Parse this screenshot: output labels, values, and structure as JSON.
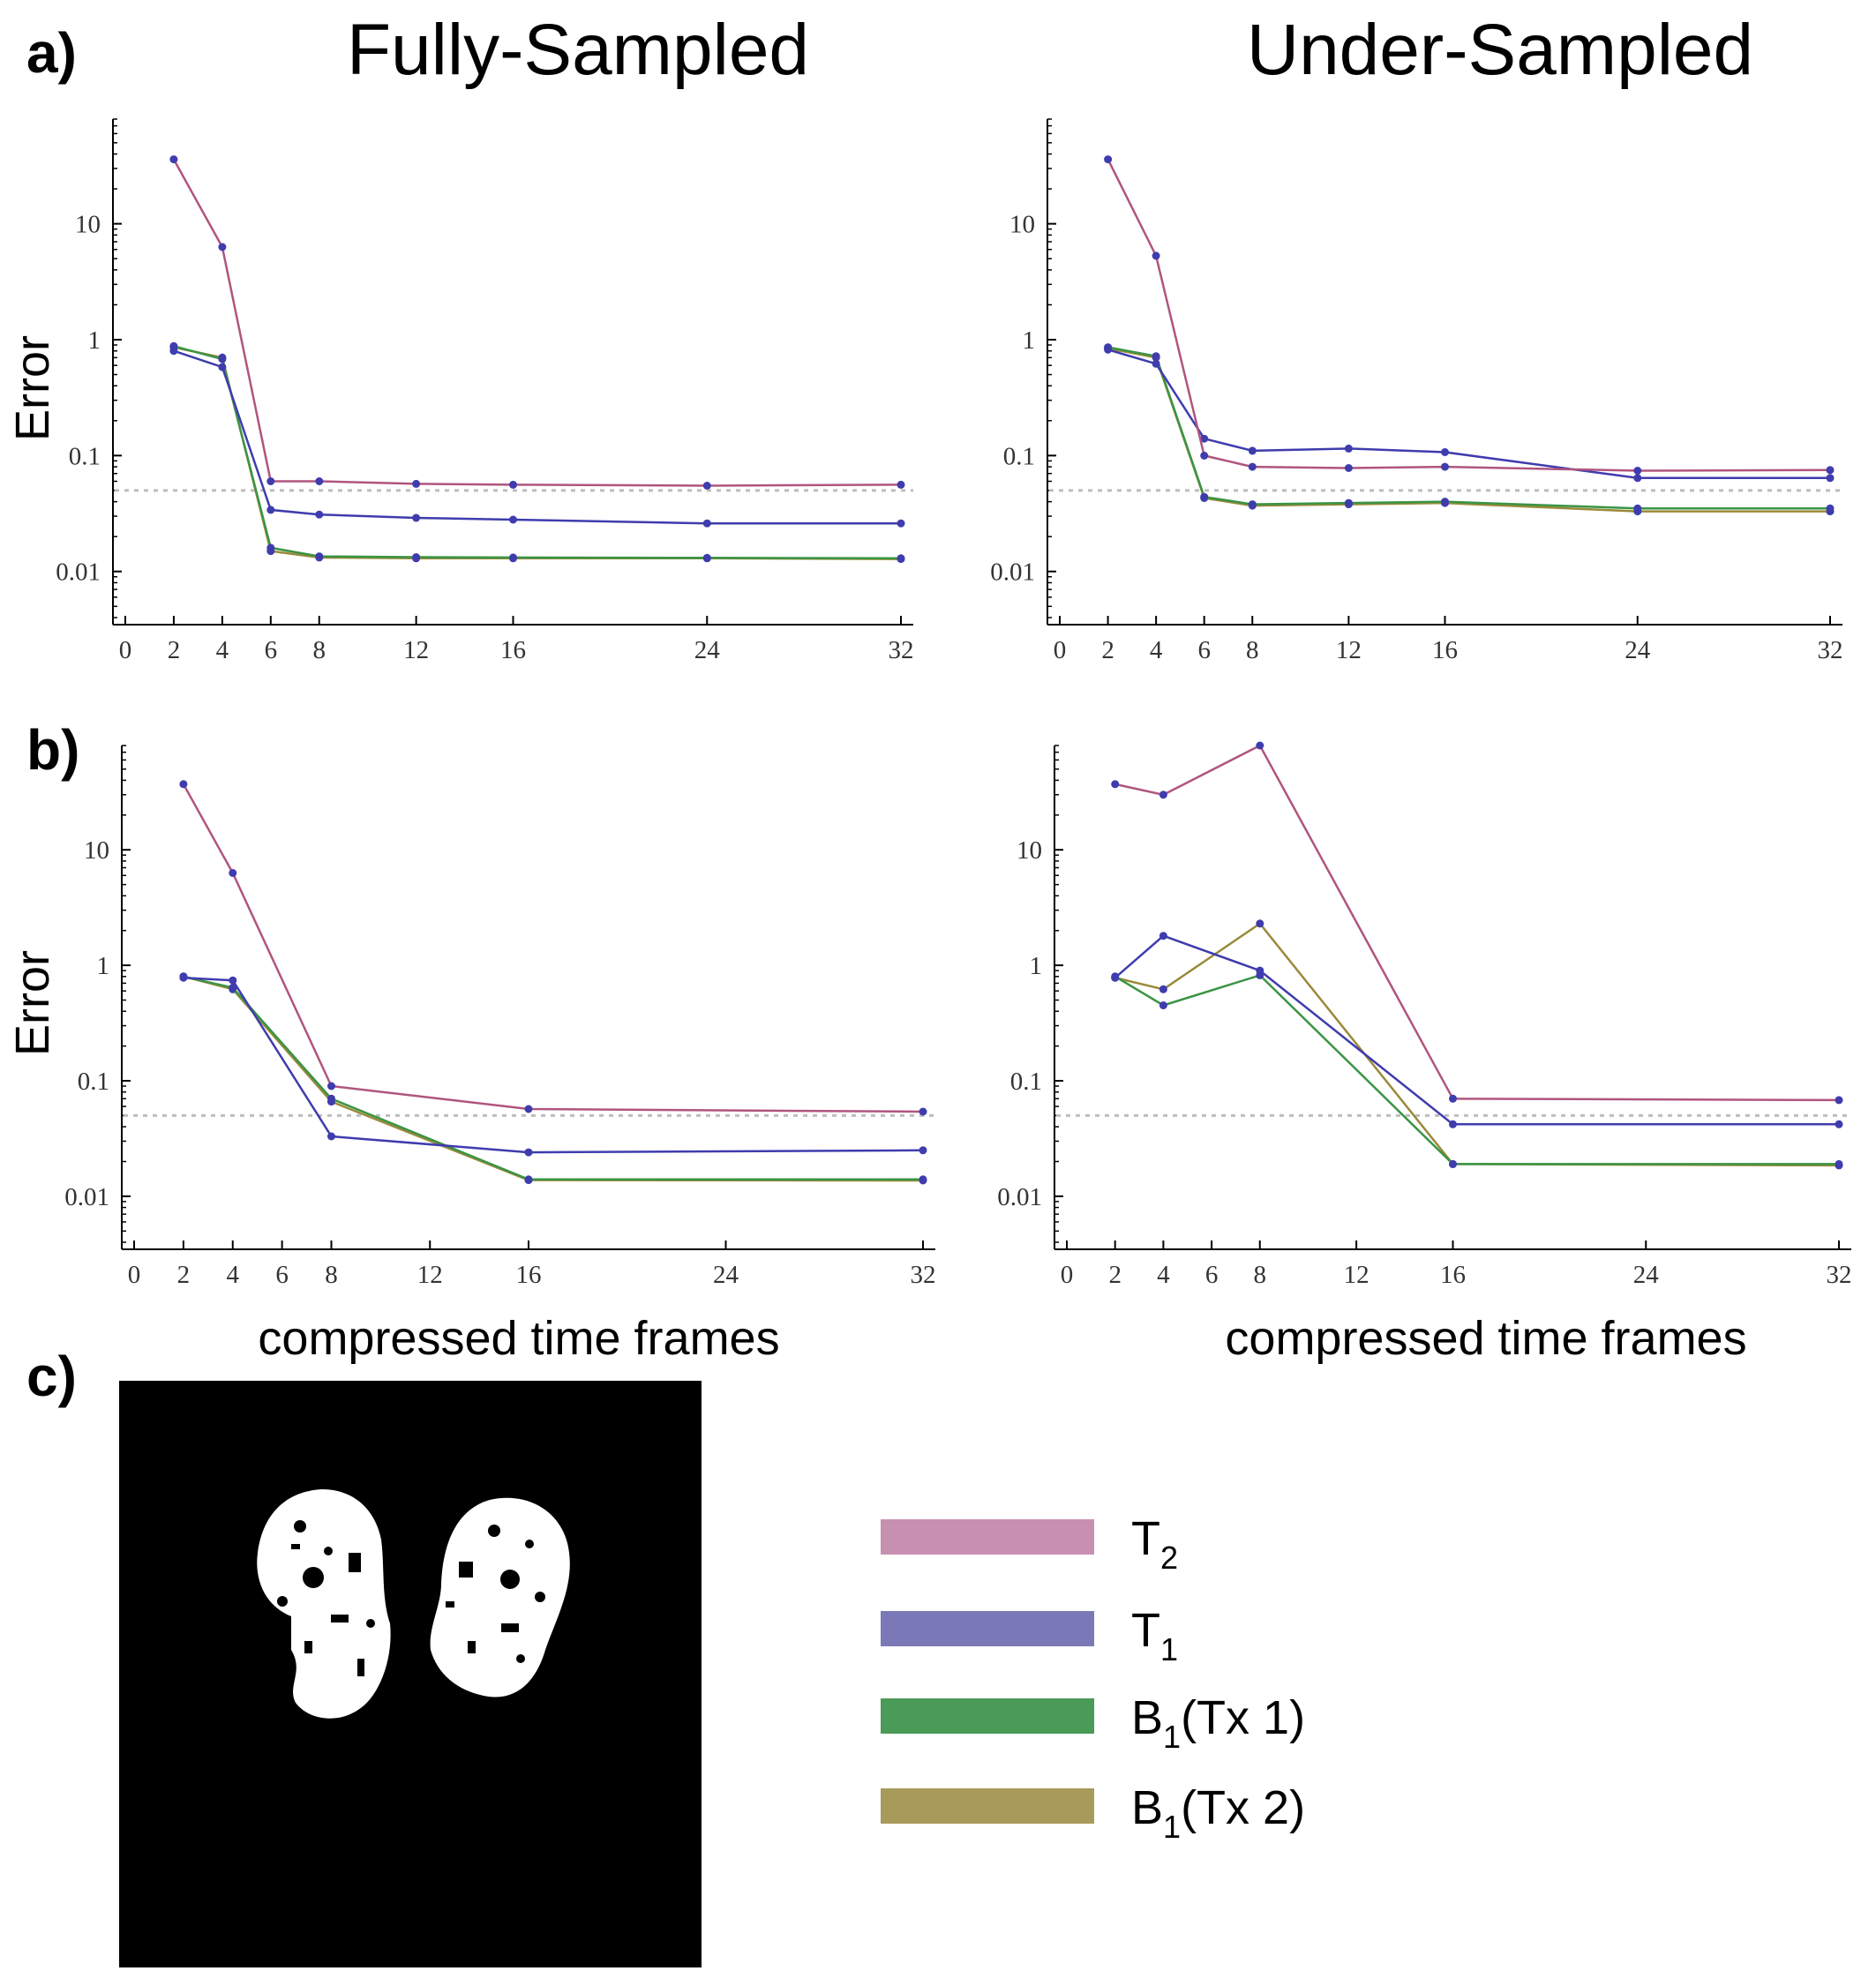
{
  "panels": {
    "a": "a)",
    "b": "b)",
    "c": "c)"
  },
  "columns": {
    "left": "Fully-Sampled",
    "right": "Under-Sampled"
  },
  "ylabel": "Error",
  "xlabel": "compressed time frames",
  "legend": [
    {
      "main": "T",
      "sub": "2",
      "rest": "",
      "color": "#c890b0"
    },
    {
      "main": "T",
      "sub": "1",
      "rest": "",
      "color": "#7b78b8"
    },
    {
      "main": "B",
      "sub": "1",
      "rest": "(Tx 1)",
      "color": "#4a9a58"
    },
    {
      "main": "B",
      "sub": "1",
      "rest": "(Tx 2)",
      "color": "#a89a5a"
    }
  ],
  "series_colors": {
    "T2": "#b0557e",
    "T1": "#3f3cae",
    "B1_tx1": "#3a9444",
    "B1_tx2": "#9a8a3a"
  },
  "chart_data": [
    {
      "id": "a-fully",
      "type": "line",
      "title": "Fully-Sampled",
      "xlabel": "",
      "ylabel": "Error",
      "yscale": "log",
      "ylim": [
        0.004,
        80
      ],
      "xlim": [
        0,
        32
      ],
      "xticks": [
        0,
        2,
        4,
        6,
        8,
        12,
        16,
        24,
        32
      ],
      "yticks": [
        0.01,
        0.1,
        1,
        10
      ],
      "ytick_labels": [
        "0.01",
        "0.1",
        "1",
        "10"
      ],
      "reference_line": 0.05,
      "series": [
        {
          "name": "T2",
          "x": [
            2,
            4,
            6,
            8,
            12,
            16,
            24,
            32
          ],
          "values": [
            36,
            6.3,
            0.06,
            0.06,
            0.057,
            0.056,
            0.055,
            0.056
          ]
        },
        {
          "name": "T1",
          "x": [
            2,
            4,
            6,
            8,
            12,
            16,
            24,
            32
          ],
          "values": [
            0.8,
            0.58,
            0.034,
            0.031,
            0.029,
            0.028,
            0.026,
            0.026
          ]
        },
        {
          "name": "B1 (Tx 1)",
          "x": [
            2,
            4,
            6,
            8,
            12,
            16,
            24,
            32
          ],
          "values": [
            0.88,
            0.68,
            0.016,
            0.0135,
            0.0133,
            0.0132,
            0.0131,
            0.013
          ]
        },
        {
          "name": "B1 (Tx 2)",
          "x": [
            2,
            4,
            6,
            8,
            12,
            16,
            24,
            32
          ],
          "values": [
            0.86,
            0.7,
            0.015,
            0.0132,
            0.013,
            0.013,
            0.013,
            0.0128
          ]
        }
      ]
    },
    {
      "id": "a-under",
      "type": "line",
      "title": "Under-Sampled",
      "xlabel": "",
      "ylabel": "",
      "yscale": "log",
      "ylim": [
        0.004,
        80
      ],
      "xlim": [
        0,
        32
      ],
      "xticks": [
        0,
        2,
        4,
        6,
        8,
        12,
        16,
        24,
        32
      ],
      "yticks": [
        0.01,
        0.1,
        1,
        10
      ],
      "ytick_labels": [
        "0.01",
        "0.1",
        "1",
        "10"
      ],
      "reference_line": 0.05,
      "series": [
        {
          "name": "T2",
          "x": [
            2,
            4,
            6,
            8,
            12,
            16,
            24,
            32
          ],
          "values": [
            36,
            5.3,
            0.1,
            0.08,
            0.078,
            0.08,
            0.074,
            0.075
          ]
        },
        {
          "name": "T1",
          "x": [
            2,
            4,
            6,
            8,
            12,
            16,
            24,
            32
          ],
          "values": [
            0.82,
            0.62,
            0.14,
            0.11,
            0.115,
            0.107,
            0.064,
            0.064
          ]
        },
        {
          "name": "B1 (Tx 1)",
          "x": [
            2,
            4,
            6,
            8,
            12,
            16,
            24,
            32
          ],
          "values": [
            0.86,
            0.72,
            0.044,
            0.038,
            0.039,
            0.04,
            0.035,
            0.035
          ]
        },
        {
          "name": "B1 (Tx 2)",
          "x": [
            2,
            4,
            6,
            8,
            12,
            16,
            24,
            32
          ],
          "values": [
            0.84,
            0.7,
            0.043,
            0.037,
            0.038,
            0.039,
            0.033,
            0.033
          ]
        }
      ]
    },
    {
      "id": "b-fully",
      "type": "line",
      "title": "",
      "xlabel": "compressed time frames",
      "ylabel": "Error",
      "yscale": "log",
      "ylim": [
        0.004,
        80
      ],
      "xlim": [
        0,
        32
      ],
      "xticks": [
        0,
        2,
        4,
        6,
        8,
        12,
        16,
        24,
        32
      ],
      "yticks": [
        0.01,
        0.1,
        1,
        10
      ],
      "ytick_labels": [
        "0.01",
        "0.1",
        "1",
        "10"
      ],
      "reference_line": 0.05,
      "series": [
        {
          "name": "T2",
          "x": [
            2,
            4,
            8,
            16,
            32
          ],
          "values": [
            37,
            6.3,
            0.09,
            0.057,
            0.054
          ]
        },
        {
          "name": "T1",
          "x": [
            2,
            4,
            8,
            16,
            32
          ],
          "values": [
            0.78,
            0.74,
            0.033,
            0.024,
            0.025
          ]
        },
        {
          "name": "B1 (Tx 1)",
          "x": [
            2,
            4,
            8,
            16,
            32
          ],
          "values": [
            0.8,
            0.64,
            0.07,
            0.014,
            0.014
          ]
        },
        {
          "name": "B1 (Tx 2)",
          "x": [
            2,
            4,
            8,
            16,
            32
          ],
          "values": [
            0.8,
            0.62,
            0.066,
            0.0138,
            0.0137
          ]
        }
      ]
    },
    {
      "id": "b-under",
      "type": "line",
      "title": "",
      "xlabel": "compressed time frames",
      "ylabel": "",
      "yscale": "log",
      "ylim": [
        0.004,
        80
      ],
      "xlim": [
        0,
        32
      ],
      "xticks": [
        0,
        2,
        4,
        6,
        8,
        12,
        16,
        24,
        32
      ],
      "yticks": [
        0.01,
        0.1,
        1,
        10
      ],
      "ytick_labels": [
        "0.01",
        "0.1",
        "1",
        "10"
      ],
      "reference_line": 0.05,
      "series": [
        {
          "name": "T2",
          "x": [
            2,
            4,
            8,
            16,
            32
          ],
          "values": [
            37,
            30,
            80,
            0.07,
            0.068
          ]
        },
        {
          "name": "T1",
          "x": [
            2,
            4,
            8,
            16,
            32
          ],
          "values": [
            0.78,
            1.8,
            0.9,
            0.042,
            0.042
          ]
        },
        {
          "name": "B1 (Tx 1)",
          "x": [
            2,
            4,
            8,
            16,
            32
          ],
          "values": [
            0.8,
            0.45,
            0.82,
            0.019,
            0.019
          ]
        },
        {
          "name": "B1 (Tx 2)",
          "x": [
            2,
            4,
            8,
            16,
            32
          ],
          "values": [
            0.78,
            0.62,
            2.3,
            0.019,
            0.0185
          ]
        }
      ]
    }
  ]
}
